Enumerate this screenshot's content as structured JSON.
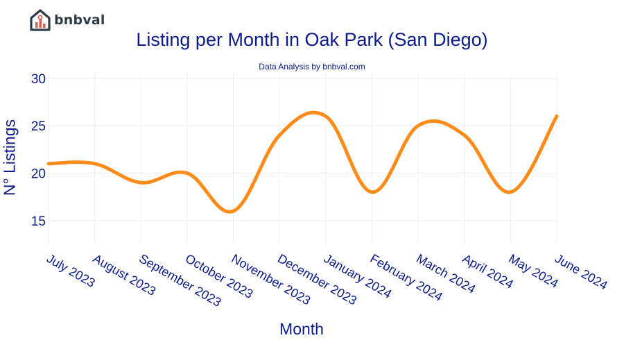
{
  "brand": {
    "name": "bnbval",
    "accent": "#e05a4f",
    "dark": "#2f3b48"
  },
  "chart_data": {
    "type": "line",
    "title": "Listing per Month in Oak Park (San Diego)",
    "subtitle": "Data Analysis by bnbval.com",
    "xlabel": "Month",
    "ylabel": "N° Listings",
    "categories": [
      "July 2023",
      "August 2023",
      "September 2023",
      "October 2023",
      "November 2023",
      "December 2023",
      "January 2024",
      "February 2024",
      "March 2024",
      "April 2024",
      "May 2024",
      "June 2024"
    ],
    "series": [
      {
        "values": [
          21,
          21,
          19,
          20,
          16,
          24,
          26,
          18,
          25,
          24,
          18,
          26
        ],
        "color": "#ff8c1a"
      }
    ],
    "ylim": [
      12.5,
      30.5
    ],
    "yticks": [
      15,
      20,
      25,
      30
    ],
    "grid": true
  }
}
